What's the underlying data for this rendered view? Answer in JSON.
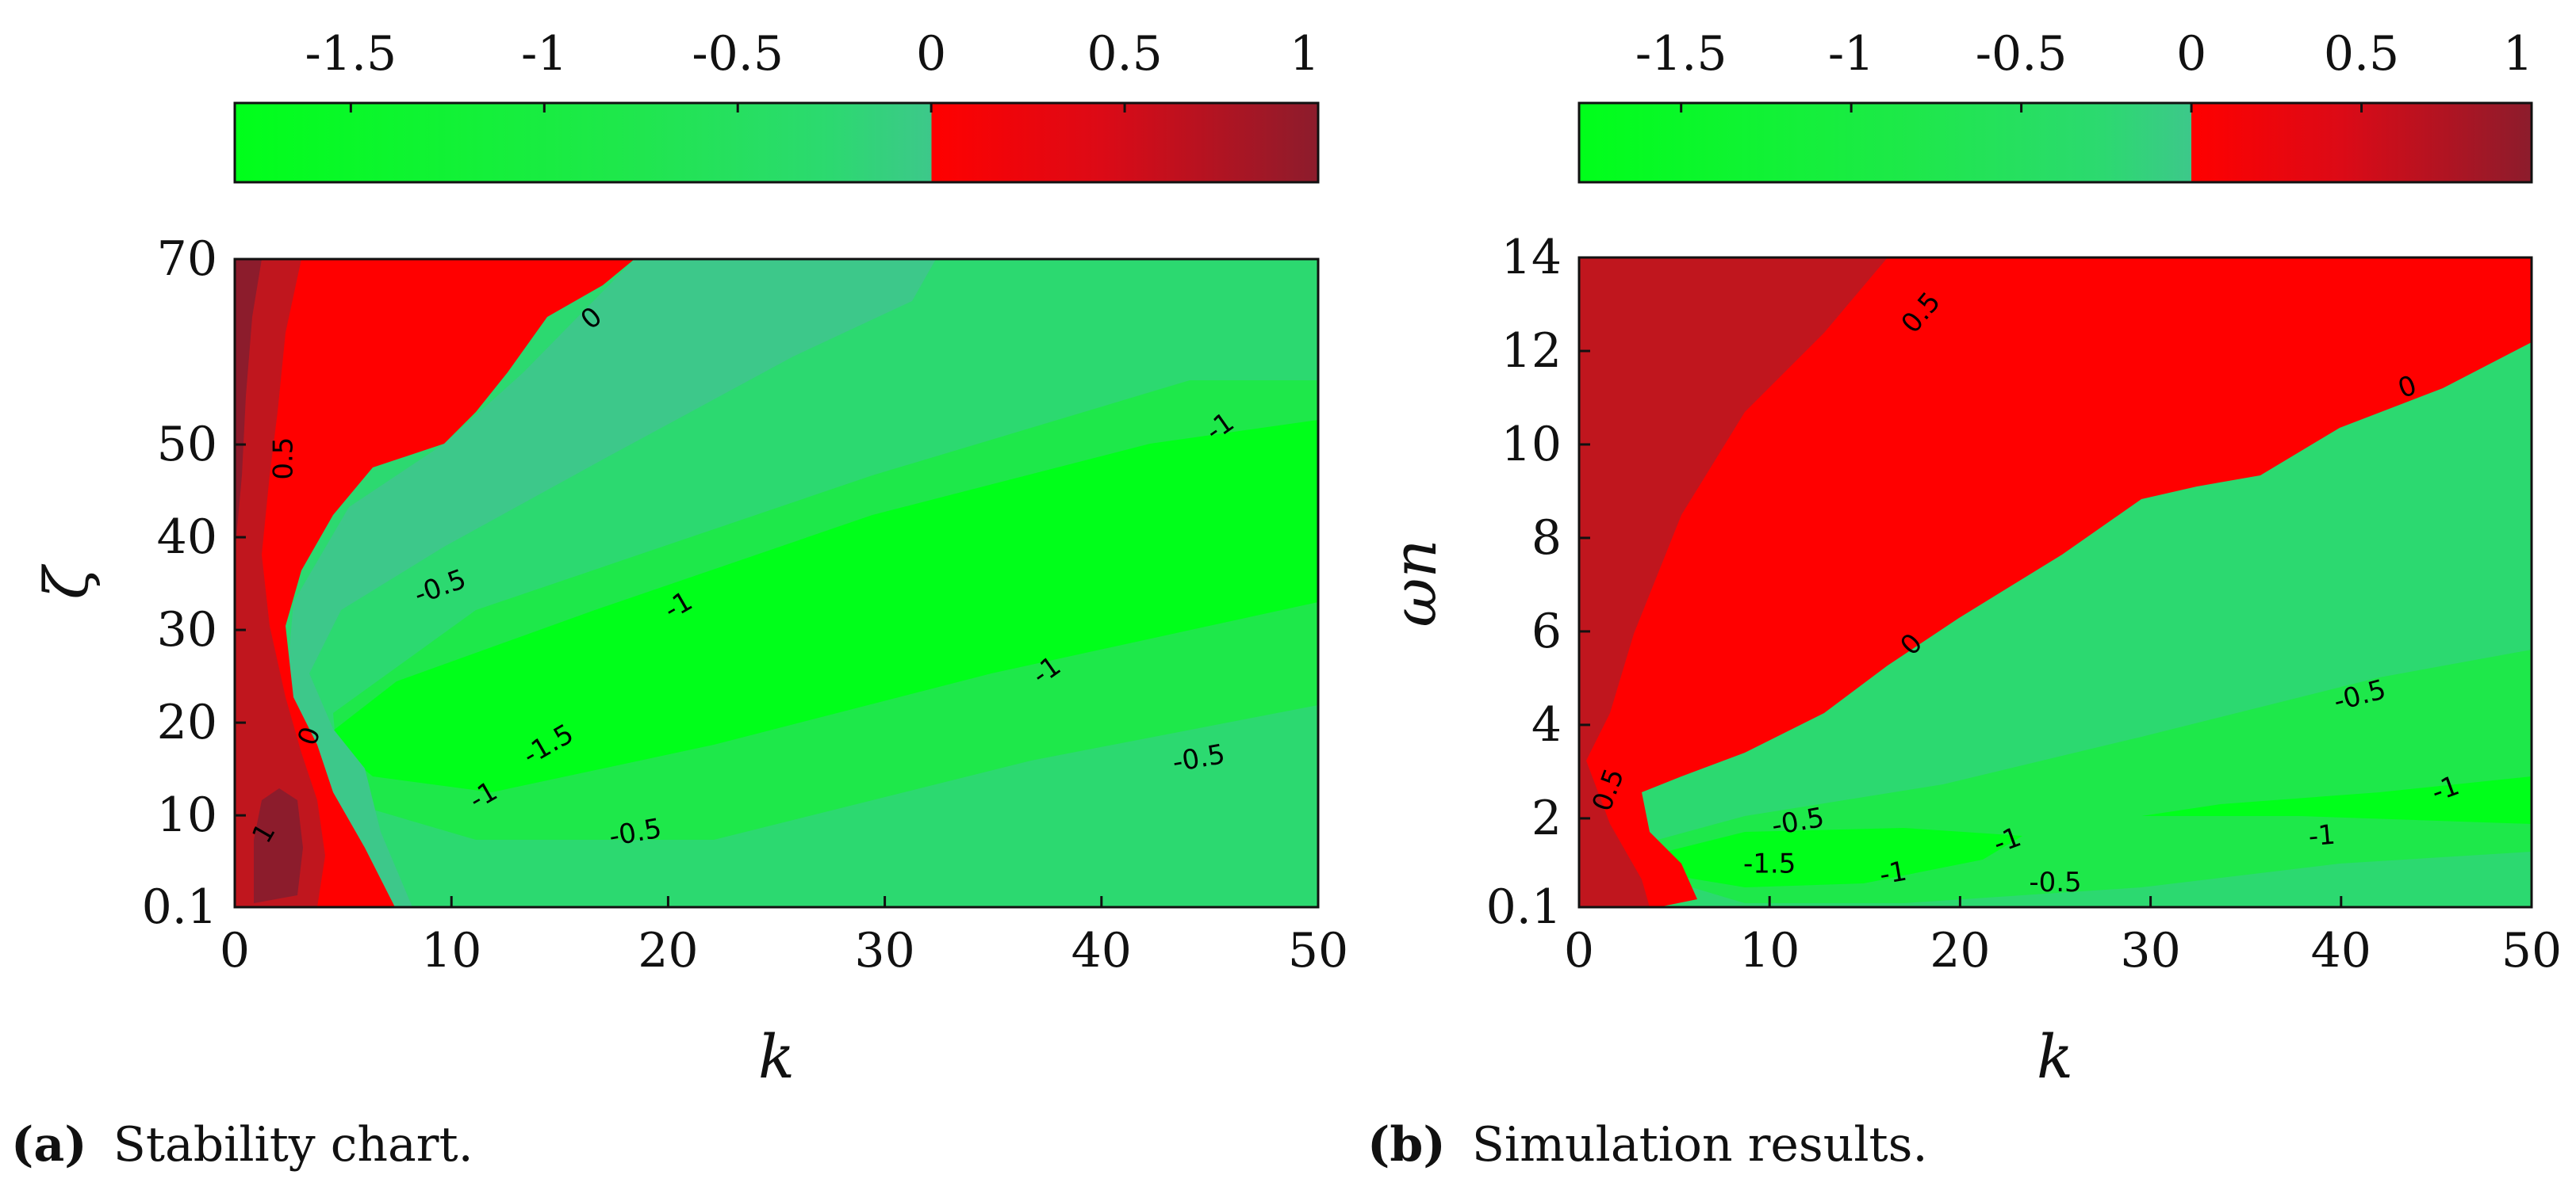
{
  "colors": {
    "red_dark": "#8c1c2c",
    "red_mid": "#c0161e",
    "red": "#ff0000",
    "green_teal": "#3dc88a",
    "green_mid": "#2cd970",
    "green_light": "#1ee84a",
    "green": "#00ff1a"
  },
  "chart_data": [
    {
      "type": "heatmap",
      "panel": "a",
      "caption_label": "(a)",
      "caption_text": "Stability chart.",
      "xlabel": "k",
      "ylabel": "ζ",
      "xlim": [
        0,
        50
      ],
      "ylim": [
        0.1,
        70
      ],
      "x_ticks": [
        "0",
        "10",
        "20",
        "30",
        "40",
        "50"
      ],
      "y_ticks": [
        "0.1",
        "10",
        "20",
        "30",
        "40",
        "50",
        "70"
      ],
      "colorbar": {
        "range": [
          -1.8,
          1.0
        ],
        "ticks": [
          "-1.5",
          "-1",
          "-0.5",
          "0",
          "0.5",
          "1"
        ]
      },
      "contour_labels": [
        {
          "text": "0",
          "x": 16.5,
          "y": 63.5,
          "rotate": -40
        },
        {
          "text": "0.5",
          "x": 2.3,
          "y": 48.5,
          "rotate": -90
        },
        {
          "text": "-0.5",
          "x": 9.5,
          "y": 34.5,
          "rotate": -20
        },
        {
          "text": "-1",
          "x": 20.5,
          "y": 32.5,
          "rotate": -30
        },
        {
          "text": "-1",
          "x": 45.5,
          "y": 51.8,
          "rotate": -35
        },
        {
          "text": "-1",
          "x": 37.5,
          "y": 25.5,
          "rotate": -35
        },
        {
          "text": "0",
          "x": 3.5,
          "y": 18.5,
          "rotate": -70
        },
        {
          "text": "-1.5",
          "x": 14.5,
          "y": 17.5,
          "rotate": -30
        },
        {
          "text": "-1",
          "x": 11.5,
          "y": 12.0,
          "rotate": -30
        },
        {
          "text": "-0.5",
          "x": 18.5,
          "y": 8.0,
          "rotate": -10
        },
        {
          "text": "-0.5",
          "x": 44.5,
          "y": 16.0,
          "rotate": -10
        },
        {
          "text": "1",
          "x": 1.4,
          "y": 8.0,
          "rotate": -60
        }
      ]
    },
    {
      "type": "heatmap",
      "panel": "b",
      "caption_label": "(b)",
      "caption_text": "Simulation results.",
      "xlabel": "k",
      "ylabel": "ωn",
      "xlim": [
        0,
        50
      ],
      "ylim": [
        0.1,
        14
      ],
      "x_ticks": [
        "0",
        "10",
        "20",
        "30",
        "40",
        "50"
      ],
      "y_ticks": [
        "0.1",
        "2",
        "4",
        "6",
        "8",
        "10",
        "12",
        "14"
      ],
      "colorbar": {
        "range": [
          -1.8,
          1.0
        ],
        "ticks": [
          "-1.5",
          "-1",
          "-0.5",
          "0",
          "0.5",
          "1"
        ]
      },
      "contour_labels": [
        {
          "text": "0.5",
          "x": 18.0,
          "y": 12.8,
          "rotate": -50
        },
        {
          "text": "0",
          "x": 43.5,
          "y": 11.2,
          "rotate": -20
        },
        {
          "text": "0",
          "x": 17.5,
          "y": 5.7,
          "rotate": -45
        },
        {
          "text": "-0.5",
          "x": 41.0,
          "y": 4.6,
          "rotate": -15
        },
        {
          "text": "0.5",
          "x": 1.6,
          "y": 2.6,
          "rotate": -70
        },
        {
          "text": "-0.5",
          "x": 11.5,
          "y": 1.9,
          "rotate": -10
        },
        {
          "text": "-1",
          "x": 45.5,
          "y": 2.6,
          "rotate": -20
        },
        {
          "text": "-1",
          "x": 39.0,
          "y": 1.6,
          "rotate": -5
        },
        {
          "text": "-1.5",
          "x": 10.0,
          "y": 1.0,
          "rotate": 0
        },
        {
          "text": "-1",
          "x": 22.5,
          "y": 1.5,
          "rotate": -20
        },
        {
          "text": "-1",
          "x": 16.5,
          "y": 0.8,
          "rotate": -10
        },
        {
          "text": "-0.5",
          "x": 25.0,
          "y": 0.6,
          "rotate": 0
        }
      ]
    }
  ]
}
